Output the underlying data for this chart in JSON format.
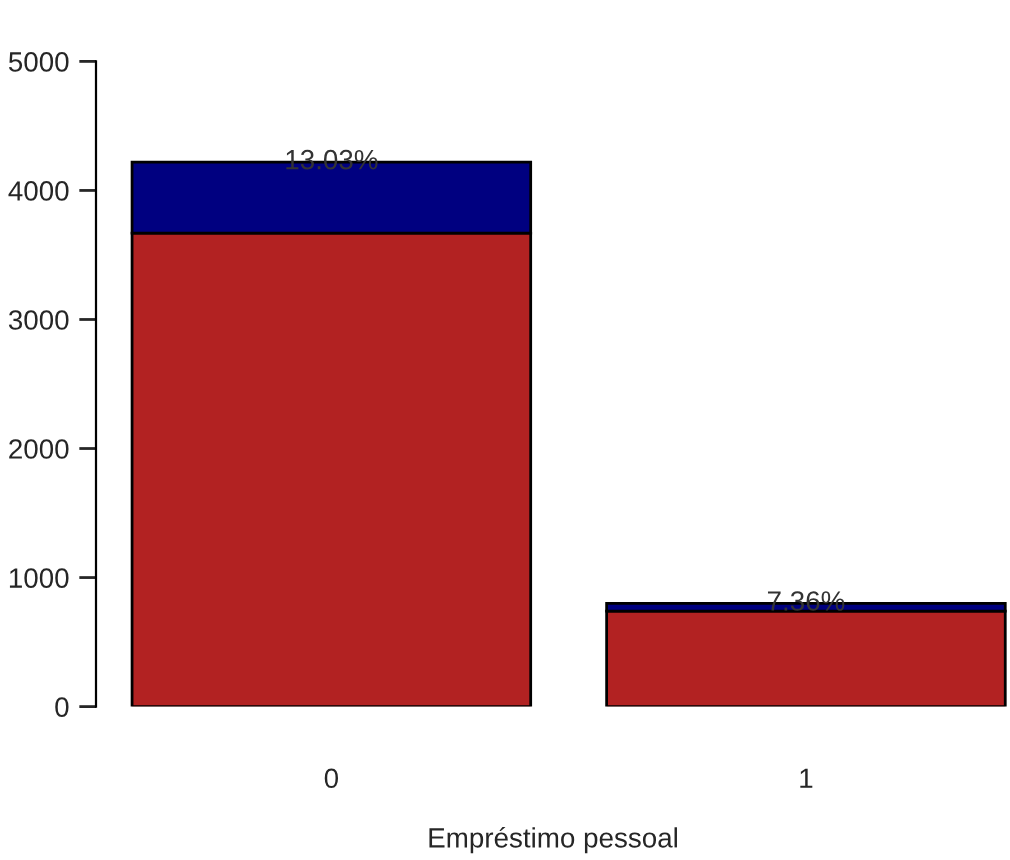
{
  "chart_data": {
    "type": "bar",
    "stacked": true,
    "xlabel": "Empréstimo pessoal",
    "categories": [
      "0",
      "1"
    ],
    "series": [
      {
        "color": "#b22222",
        "values": [
          3670,
          740
        ]
      },
      {
        "color": "#000080",
        "values": [
          550,
          60
        ]
      }
    ],
    "ylim": [
      0,
      5000
    ],
    "yticks": [
      0,
      1000,
      2000,
      3000,
      4000,
      5000
    ],
    "grid": false,
    "legend": false,
    "annotations": [
      {
        "text": "13.03%",
        "x": "0",
        "y": 4220
      },
      {
        "text": "7.36%",
        "x": "1",
        "y": 800
      }
    ]
  }
}
